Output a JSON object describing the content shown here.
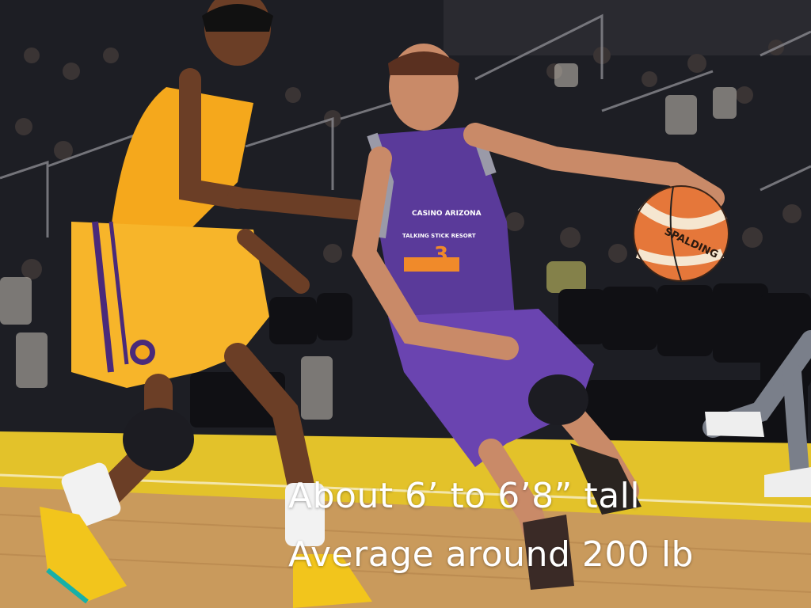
{
  "caption": {
    "line1": "About 6’ to 6’8” tall",
    "line2": "Average around 200 lb"
  },
  "jerseys": {
    "purple_number": "3",
    "purple_sponsor_1": "CASINO ARIZONA",
    "purple_sponsor_2": "TALKING STICK RESORT",
    "ball_brand": "SPALDING"
  },
  "colors": {
    "court": "#c99a5c",
    "court_paint": "#e3c22a",
    "purple_uniform": "#5a3a9a",
    "gold_uniform": "#f5a81c",
    "crowd": "#1e1e24",
    "ball": "#e5773a"
  }
}
